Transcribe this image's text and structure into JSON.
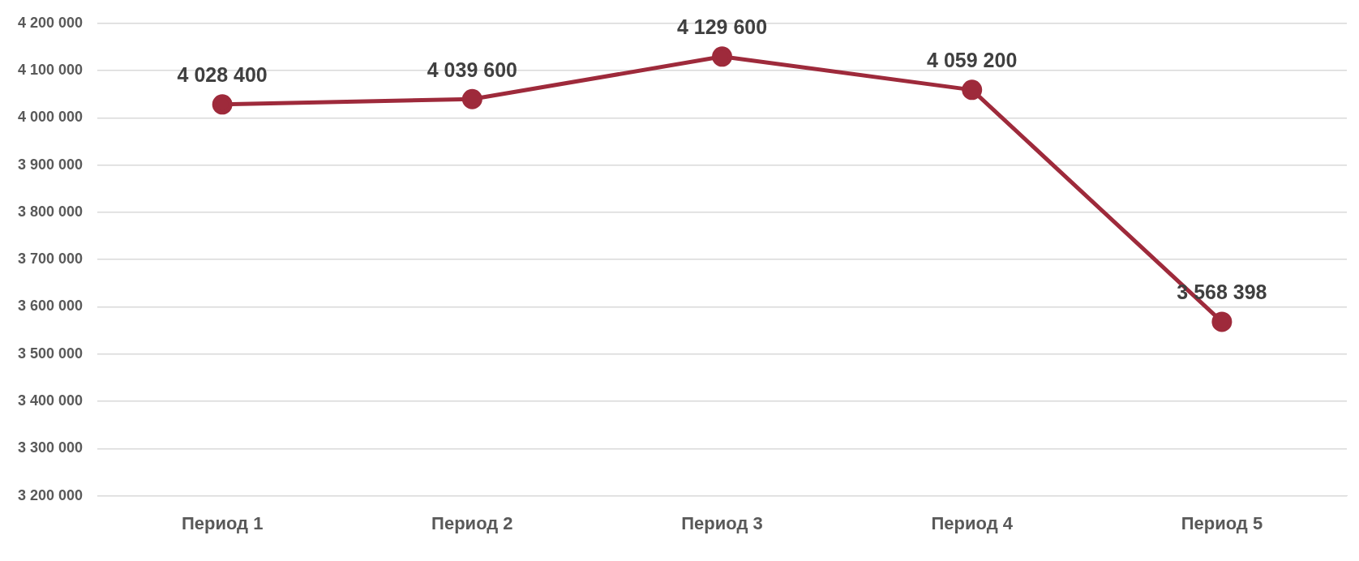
{
  "chart_data": {
    "type": "line",
    "categories": [
      "Период 1",
      "Период 2",
      "Период 3",
      "Период 4",
      "Период 5"
    ],
    "series": [
      {
        "color": "#9e2a3b",
        "values": [
          4028400,
          4039600,
          4129600,
          4059200,
          3568398
        ],
        "value_labels": [
          "4 028 400",
          "4 039 600",
          "4 129 600",
          "4 059 200",
          "3 568 398"
        ]
      }
    ],
    "ylim": [
      3200000,
      4200000
    ],
    "yticks": [
      {
        "value": 3200000,
        "label": "3 200 000"
      },
      {
        "value": 3300000,
        "label": "3 300 000"
      },
      {
        "value": 3400000,
        "label": "3 400 000"
      },
      {
        "value": 3500000,
        "label": "3 500 000"
      },
      {
        "value": 3600000,
        "label": "3 600 000"
      },
      {
        "value": 3700000,
        "label": "3 700 000"
      },
      {
        "value": 3800000,
        "label": "3 800 000"
      },
      {
        "value": 3900000,
        "label": "3 900 000"
      },
      {
        "value": 4000000,
        "label": "4 000 000"
      },
      {
        "value": 4100000,
        "label": "4 100 000"
      },
      {
        "value": 4200000,
        "label": "4 200 000"
      }
    ],
    "grid": "y",
    "legend": false,
    "marker": "circle",
    "line_style": "solid"
  }
}
